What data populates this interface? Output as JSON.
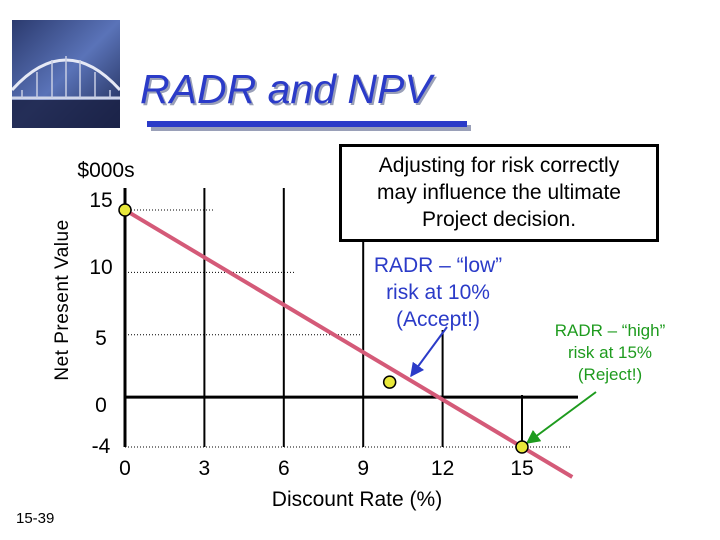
{
  "title": "RADR and NPV",
  "slide_number": "15-39",
  "callout": {
    "lines": [
      "Adjusting for risk correctly",
      "may influence the ultimate",
      "Project decision."
    ]
  },
  "annotations": {
    "low": {
      "lines": [
        "RADR – “low”",
        "risk at 10%",
        "(Accept!)"
      ],
      "color": "#2b3bc8"
    },
    "high": {
      "lines": [
        "RADR – “high”",
        "risk at 15%",
        "(Reject!)"
      ],
      "color": "#1e9b1e"
    }
  },
  "chart_data": {
    "type": "line",
    "ylabel": "Net Present Value",
    "yunit": "$000s",
    "xlabel": "Discount Rate (%)",
    "x_ticks": [
      0,
      3,
      6,
      9,
      12,
      15
    ],
    "y_ticks": [
      15,
      10,
      5,
      0,
      -4
    ],
    "xlim": [
      0,
      15
    ],
    "ylim": [
      -4,
      15
    ],
    "series": [
      {
        "color": "#d45a78",
        "x": [
          0,
          15
        ],
        "y": [
          15,
          -4
        ]
      }
    ],
    "markers": [
      {
        "x": 0,
        "y": 15,
        "color": "#e8e83a"
      },
      {
        "x": 10,
        "y": 1.2,
        "color": "#e8e83a"
      },
      {
        "x": 15,
        "y": -4,
        "color": "#e8e83a"
      }
    ],
    "colors": {
      "line": "#d45a78",
      "marker": "#e8e83a",
      "low_arrow": "#2b3bc8",
      "high_arrow": "#1e9b1e"
    }
  }
}
